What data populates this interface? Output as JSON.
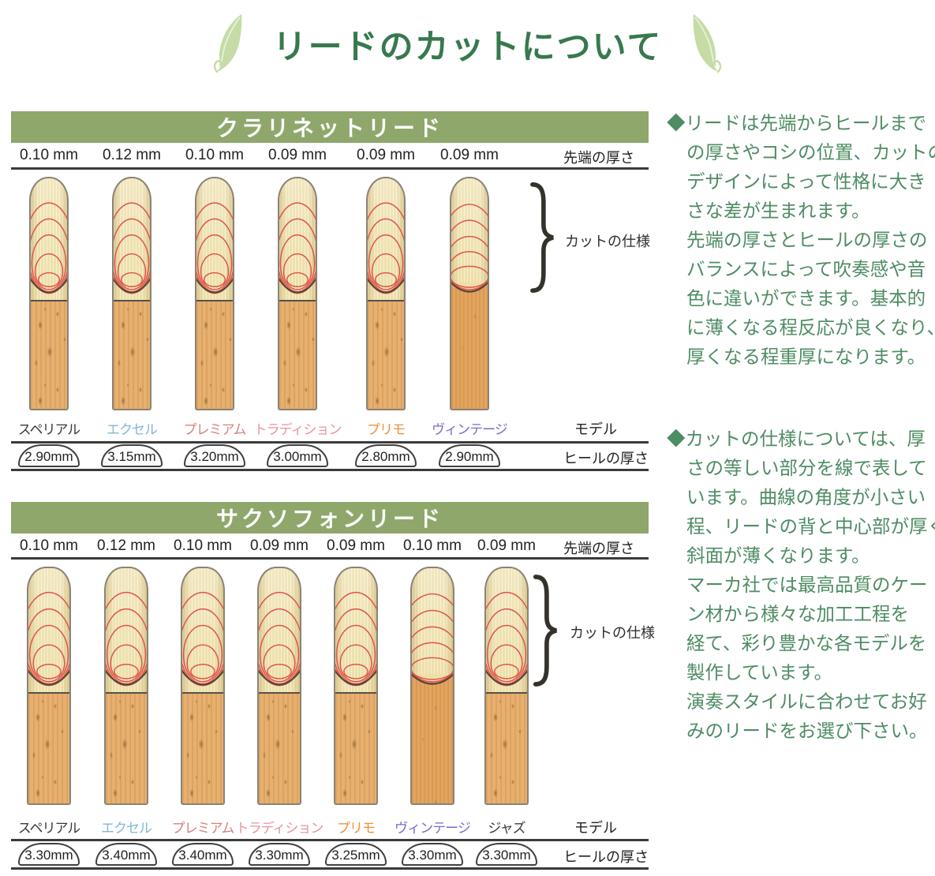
{
  "title": "リードのカットについて",
  "colors": {
    "title_green": "#37794e",
    "leaf_green": "#c6dba6",
    "bar_green": "#8fa76b",
    "body_green": "#4e8c63",
    "arc_red": "#e0544a",
    "excel_blue": "#82b7d6",
    "premium_rose": "#d5837b",
    "tradition_pink": "#e8949c",
    "primo_orange": "#ef913c",
    "vintage_violet": "#7a6bc9"
  },
  "right_column": {
    "paragraphs": [
      {
        "lines": [
          "◆リードは先端からヒールまで",
          "の厚さやコシの位置、カットの",
          "デザインによって性格に大き",
          "さな差が生まれます。",
          "先端の厚さとヒールの厚さの",
          "バランスによって吹奏感や音",
          "色に違いができます。基本的",
          "に薄くなる程反応が良くなり、",
          "厚くなる程重厚になります。"
        ]
      },
      {
        "lines": [
          "◆カットの仕様については、厚",
          "さの等しい部分を線で表して",
          "います。曲線の角度が小さい",
          "程、リードの背と中心部が厚く",
          "斜面が薄くなります。",
          "マーカ社では最高品質のケー",
          "ン材から様々な加工工程を",
          "経て、彩り豊かな各モデルを",
          "製作しています。",
          "演奏スタイルに合わせてお好",
          "みのリードをお選び下さい。"
        ]
      }
    ]
  },
  "sections": [
    {
      "header": "クラリネットリード",
      "tip_label": "先端の厚さ",
      "cut_label": "カットの仕様",
      "model_label": "モデル",
      "heel_label": "ヒールの厚さ",
      "reeds": [
        {
          "tip": "0.10 mm",
          "model": "スペリアル",
          "model_color": "#3a3a3a",
          "heel": "2.90mm",
          "variant": "normal"
        },
        {
          "tip": "0.12 mm",
          "model": "エクセル",
          "model_color": "#82b7d6",
          "heel": "3.15mm",
          "variant": "normal"
        },
        {
          "tip": "0.10 mm",
          "model": "プレミアム",
          "model_color": "#d5837b",
          "heel": "3.20mm",
          "variant": "normal"
        },
        {
          "tip": "0.09 mm",
          "model": "トラディション",
          "model_color": "#e8949c",
          "heel": "3.00mm",
          "variant": "normal"
        },
        {
          "tip": "0.09 mm",
          "model": "プリモ",
          "model_color": "#ef913c",
          "heel": "2.80mm",
          "variant": "normal"
        },
        {
          "tip": "0.09 mm",
          "model": "ヴィンテージ",
          "model_color": "#7a6bc9",
          "heel": "2.90mm",
          "variant": "vintage"
        }
      ]
    },
    {
      "header": "サクソフォンリード",
      "tip_label": "先端の厚さ",
      "cut_label": "カットの仕様",
      "model_label": "モデル",
      "heel_label": "ヒールの厚さ",
      "reeds": [
        {
          "tip": "0.10 mm",
          "model": "スペリアル",
          "model_color": "#3a3a3a",
          "heel": "3.30mm",
          "variant": "normal"
        },
        {
          "tip": "0.12 mm",
          "model": "エクセル",
          "model_color": "#82b7d6",
          "heel": "3.40mm",
          "variant": "normal"
        },
        {
          "tip": "0.10 mm",
          "model": "プレミアム",
          "model_color": "#d5837b",
          "heel": "3.40mm",
          "variant": "normal"
        },
        {
          "tip": "0.09 mm",
          "model": "トラディション",
          "model_color": "#e8949c",
          "heel": "3.30mm",
          "variant": "normal"
        },
        {
          "tip": "0.09 mm",
          "model": "プリモ",
          "model_color": "#ef913c",
          "heel": "3.25mm",
          "variant": "normal"
        },
        {
          "tip": "0.10 mm",
          "model": "ヴィンテージ",
          "model_color": "#7a6bc9",
          "heel": "3.30mm",
          "variant": "vintage"
        },
        {
          "tip": "0.09 mm",
          "model": "ジャズ",
          "model_color": "#3a3a3a",
          "heel": "3.30mm",
          "variant": "normal"
        }
      ]
    }
  ]
}
